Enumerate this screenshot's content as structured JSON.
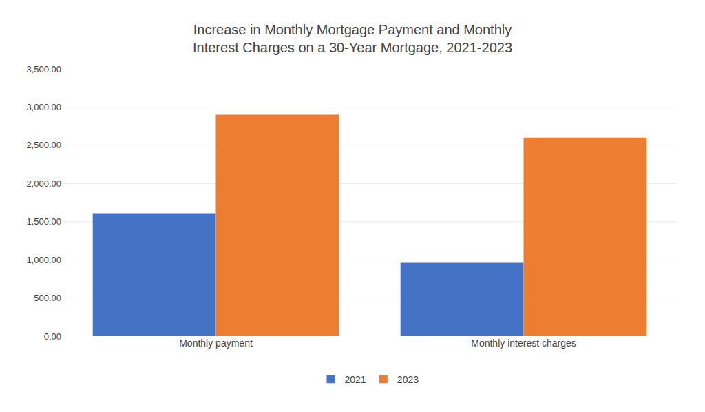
{
  "chart_data": {
    "type": "bar",
    "title": "Increase in Monthly Mortgage Payment and Monthly\nInterest Charges on a 30-Year Mortgage, 2021-2023",
    "categories": [
      "Monthly payment",
      "Monthly interest charges"
    ],
    "series": [
      {
        "name": "2021",
        "color": "#4472C4",
        "values": [
          1610,
          960
        ]
      },
      {
        "name": "2023",
        "color": "#ED7D31",
        "values": [
          2900,
          2600
        ]
      }
    ],
    "ylim": [
      0,
      3500
    ],
    "yticks": [
      {
        "value": 0,
        "label": "0.00"
      },
      {
        "value": 500,
        "label": "500.00"
      },
      {
        "value": 1000,
        "label": "1,000.00"
      },
      {
        "value": 1500,
        "label": "1,500.00"
      },
      {
        "value": 2000,
        "label": "2,000.00"
      },
      {
        "value": 2500,
        "label": "2,500.00"
      },
      {
        "value": 3000,
        "label": "3,000.00"
      },
      {
        "value": 3500,
        "label": "3,500.00"
      }
    ],
    "grid": true,
    "legend": "bottom"
  }
}
